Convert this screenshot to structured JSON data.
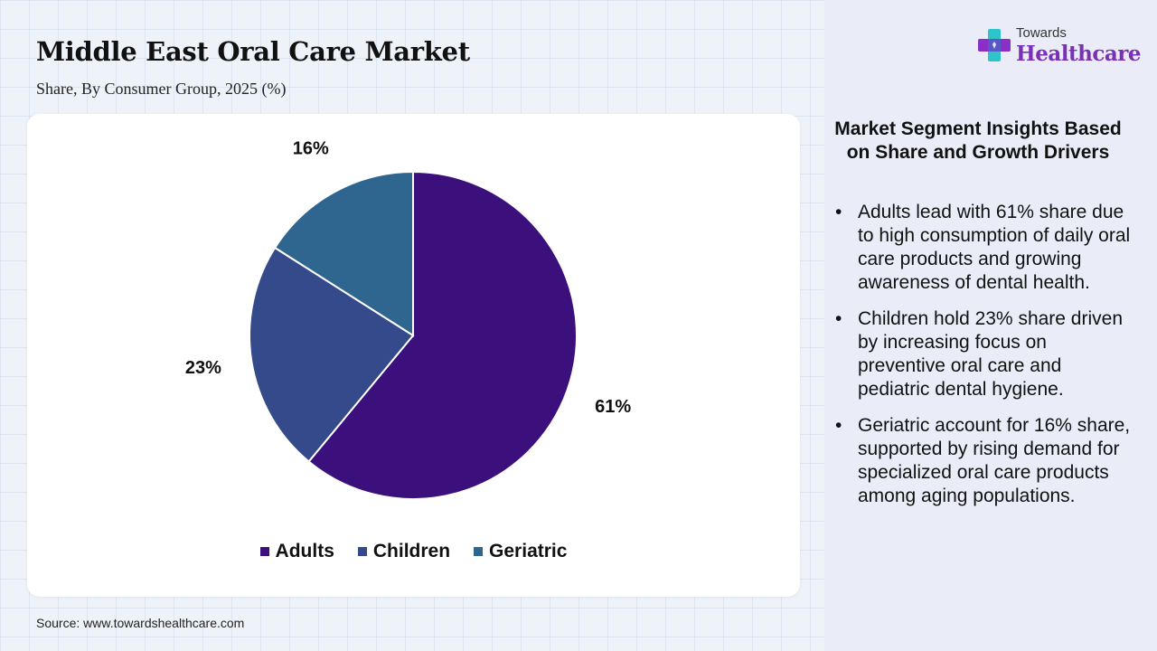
{
  "header": {
    "title": "Middle East Oral Care Market",
    "subtitle": "Share, By Consumer Group, 2025 (%)"
  },
  "brand": {
    "small": "Towards",
    "big": "Healthcare",
    "colors": {
      "accent": "#7a2fb8",
      "plus_top": "#2ec4c9",
      "plus_bottom": "#8b2fc9"
    }
  },
  "chart_data": {
    "type": "pie",
    "title": "Middle East Oral Care Market",
    "subtitle": "Share, By Consumer Group, 2025 (%)",
    "categories": [
      "Adults",
      "Children",
      "Geriatric"
    ],
    "values": [
      61,
      23,
      16
    ],
    "labels": [
      "61%",
      "23%",
      "16%"
    ],
    "colors": [
      "#3b0f7c",
      "#344a8a",
      "#2f6690"
    ],
    "start": "top",
    "direction": "clockwise",
    "legend": "bottom"
  },
  "insights": {
    "title": "Market Segment Insights Based on Share and Growth Drivers",
    "bullet": "•",
    "items": [
      "Adults lead with 61% share due to high consumption of daily oral care products and growing awareness of dental health.",
      "Children hold 23% share driven by increasing focus on preventive oral care and pediatric dental hygiene.",
      "Geriatric account for 16% share, supported by rising demand for specialized oral care products among aging populations."
    ]
  },
  "footer": {
    "source": "Source: www.towardshealthcare.com"
  }
}
